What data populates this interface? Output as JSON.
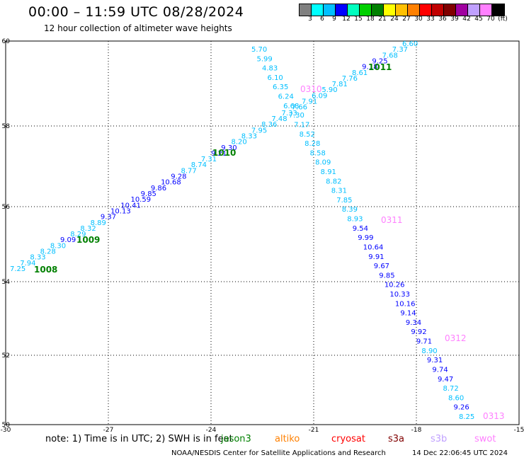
{
  "header": {
    "title": "00:00 – 11:59 UTC 08/28/2024",
    "subtitle": "12 hour collection of altimeter wave heights"
  },
  "colorbar": {
    "colors": [
      "#808080",
      "#00ffff",
      "#00bfff",
      "#0000ff",
      "#00ffbf",
      "#00d000",
      "#008000",
      "#ffff00",
      "#ffc000",
      "#ff8000",
      "#ff0000",
      "#c00000",
      "#800000",
      "#a000a0",
      "#c0a0ff",
      "#ff80ff",
      "#000000"
    ],
    "labels": [
      "3",
      "6",
      "9",
      "12",
      "15",
      "18",
      "21",
      "24",
      "27",
      "30",
      "33",
      "36",
      "39",
      "42",
      "45",
      "70",
      "(ft)"
    ]
  },
  "axes": {
    "y_labels": [
      "60",
      "58",
      "56",
      "54",
      "52",
      "50"
    ],
    "x_labels": [
      "-30",
      "-27",
      "-24",
      "-21",
      "-18",
      "-15"
    ]
  },
  "track_a": {
    "values": [
      "7.25",
      "7.94",
      "8.33",
      "8.28",
      "8.30",
      "9.09",
      "8.29",
      "8.32",
      "8.89",
      "9.37",
      "10.13",
      "10.41",
      "10.59",
      "9.85",
      "9.86",
      "10.68",
      "9.28",
      "8.77",
      "8.74",
      "7.31",
      "9.21",
      "9.30",
      "8.20",
      "8.33",
      "7.95",
      "8.36",
      "7.48",
      "7.33",
      "7.66",
      "7.91",
      "6.09",
      "5.90",
      "7.81",
      "7.76",
      "8.61",
      "9.18",
      "9.25",
      "7.68",
      "7.37",
      "6.60"
    ],
    "colors": [
      "#00bfff",
      "#00bfff",
      "#00bfff",
      "#00bfff",
      "#00bfff",
      "#0000ff",
      "#00bfff",
      "#00bfff",
      "#00bfff",
      "#0000ff",
      "#0000ff",
      "#0000ff",
      "#0000ff",
      "#0000ff",
      "#0000ff",
      "#0000ff",
      "#0000ff",
      "#00bfff",
      "#00bfff",
      "#00bfff",
      "#0000ff",
      "#0000ff",
      "#00bfff",
      "#00bfff",
      "#00bfff",
      "#00bfff",
      "#00bfff",
      "#00bfff",
      "#00bfff",
      "#00bfff",
      "#00bfff",
      "#00bfff",
      "#00bfff",
      "#00bfff",
      "#00bfff",
      "#0000ff",
      "#0000ff",
      "#00bfff",
      "#00bfff",
      "#00bfff"
    ],
    "time_labels": [
      "1008",
      "1009",
      "1010",
      "1011"
    ]
  },
  "track_b": {
    "values": [
      "5.70",
      "5.99",
      "4.83",
      "6.10",
      "6.35",
      "6.24",
      "6.68",
      "7.30",
      "7.17",
      "8.52",
      "8.28",
      "8.58",
      "8.09",
      "8.91",
      "8.82",
      "8.31",
      "7.85",
      "8.39",
      "8.93",
      "9.54",
      "9.99",
      "10.64",
      "9.91",
      "9.67",
      "9.85",
      "10.26",
      "10.33",
      "10.16",
      "9.14",
      "9.34",
      "9.92",
      "9.71",
      "8.90",
      "9.31",
      "9.74",
      "9.47",
      "8.72",
      "8.60",
      "9.26",
      "8.25"
    ],
    "colors": [
      "#00bfff",
      "#00bfff",
      "#00bfff",
      "#00bfff",
      "#00bfff",
      "#00bfff",
      "#00bfff",
      "#00bfff",
      "#00bfff",
      "#00bfff",
      "#00bfff",
      "#00bfff",
      "#00bfff",
      "#00bfff",
      "#00bfff",
      "#00bfff",
      "#00bfff",
      "#00bfff",
      "#00bfff",
      "#0000ff",
      "#0000ff",
      "#0000ff",
      "#0000ff",
      "#0000ff",
      "#0000ff",
      "#0000ff",
      "#0000ff",
      "#0000ff",
      "#0000ff",
      "#0000ff",
      "#0000ff",
      "#0000ff",
      "#00bfff",
      "#0000ff",
      "#0000ff",
      "#0000ff",
      "#00bfff",
      "#00bfff",
      "#0000ff",
      "#00bfff"
    ],
    "time_labels": [
      "0310",
      "0311",
      "0312",
      "0313"
    ]
  },
  "footer": {
    "note": "note:  1) Time is in UTC; 2) SWH is in feet",
    "satellites": [
      {
        "name": "jason3",
        "color": "#008000"
      },
      {
        "name": "altiko",
        "color": "#ff8000"
      },
      {
        "name": "cryosat",
        "color": "#ff0000"
      },
      {
        "name": "s3a",
        "color": "#800000"
      },
      {
        "name": "s3b",
        "color": "#c0a0ff"
      },
      {
        "name": "swot",
        "color": "#ff80ff"
      }
    ],
    "credit": "NOAA/NESDIS Center for Satellite Applications and Research",
    "timestamp": "14 Dec 22:06:45 UTC 2024"
  },
  "colors": {
    "track_a_time": "#008000",
    "track_b_time": "#ff80ff"
  }
}
